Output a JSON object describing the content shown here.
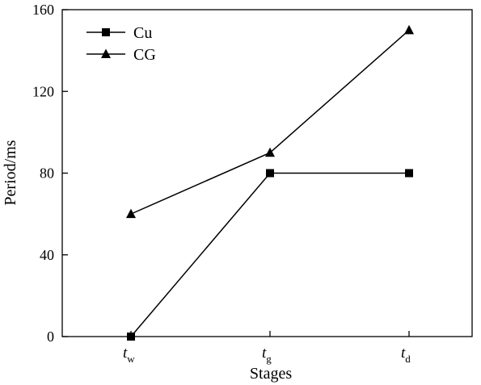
{
  "chart_data": {
    "type": "line",
    "title": "",
    "xlabel": "Stages",
    "ylabel": "Period/ms",
    "categories": [
      {
        "base": "t",
        "sub": "w"
      },
      {
        "base": "t",
        "sub": "g"
      },
      {
        "base": "t",
        "sub": "d"
      }
    ],
    "ylim": [
      0,
      160
    ],
    "yticks": [
      0,
      40,
      80,
      120,
      160
    ],
    "grid": false,
    "legend_position": "top-left",
    "series": [
      {
        "name": "Cu",
        "marker": "square",
        "color": "#000000",
        "values": [
          0,
          80,
          80
        ]
      },
      {
        "name": "CG",
        "marker": "triangle",
        "color": "#000000",
        "values": [
          60,
          90,
          150
        ]
      }
    ]
  }
}
